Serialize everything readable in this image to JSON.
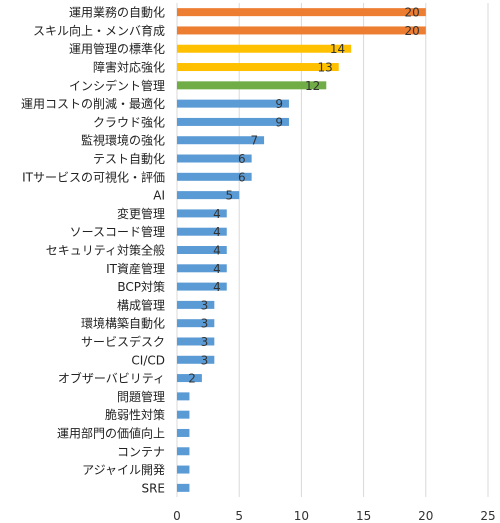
{
  "chart_data": {
    "type": "bar",
    "orientation": "horizontal",
    "categories": [
      "運用業務の自動化",
      "スキル向上・メンバ育成",
      "運用管理の標準化",
      "障害対応強化",
      "インシデント管理",
      "運用コストの削減・最適化",
      "クラウド強化",
      "監視環境の強化",
      "テスト自動化",
      "ITサービスの可視化・評価",
      "AI",
      "変更管理",
      "ソースコード管理",
      "セキュリティ対策全般",
      "IT資産管理",
      "BCP対策",
      "構成管理",
      "環境構築自動化",
      "サービスデスク",
      "CI/CD",
      "オブザーバビリティ",
      "問題管理",
      "脆弱性対策",
      "運用部門の価値向上",
      "コンテナ",
      "アジャイル開発",
      "SRE"
    ],
    "values": [
      20,
      20,
      14,
      13,
      12,
      9,
      9,
      7,
      6,
      6,
      5,
      4,
      4,
      4,
      4,
      4,
      3,
      3,
      3,
      3,
      2,
      1,
      1,
      1,
      1,
      1,
      1
    ],
    "data_labels": [
      "20",
      "20",
      "14",
      "13",
      "12",
      "9",
      "9",
      "7",
      "6",
      "6",
      "5",
      "4",
      "4",
      "4",
      "4",
      "4",
      "3",
      "3",
      "3",
      "3",
      "2",
      "",
      "",
      "",
      "",
      "",
      ""
    ],
    "bar_colors": [
      "#ed7d31",
      "#ed7d31",
      "#ffc000",
      "#ffc000",
      "#70ad47",
      "#5b9bd5",
      "#5b9bd5",
      "#5b9bd5",
      "#5b9bd5",
      "#5b9bd5",
      "#5b9bd5",
      "#5b9bd5",
      "#5b9bd5",
      "#5b9bd5",
      "#5b9bd5",
      "#5b9bd5",
      "#5b9bd5",
      "#5b9bd5",
      "#5b9bd5",
      "#5b9bd5",
      "#5b9bd5",
      "#5b9bd5",
      "#5b9bd5",
      "#5b9bd5",
      "#5b9bd5",
      "#5b9bd5",
      "#5b9bd5"
    ],
    "xlim": [
      0,
      25
    ],
    "xticks": [
      0,
      5,
      10,
      15,
      20,
      25
    ],
    "xtick_labels": [
      "0",
      "5",
      "10",
      "15",
      "20",
      "25"
    ],
    "title": "",
    "xlabel": "",
    "ylabel": "",
    "grid": "vertical",
    "legend": "none"
  }
}
